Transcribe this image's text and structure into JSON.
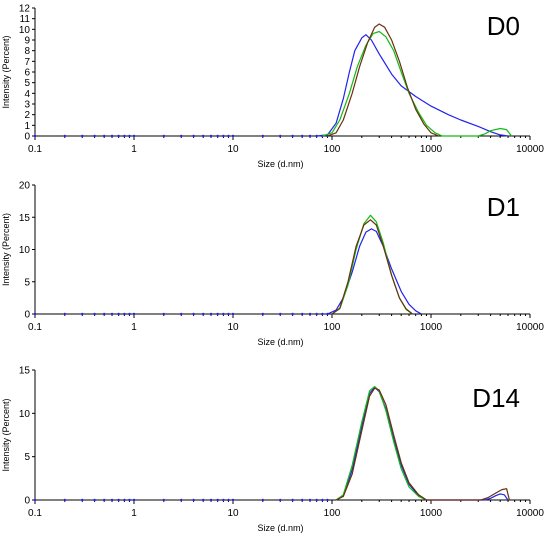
{
  "colors": {
    "run1": "#2222ee",
    "run2": "#11bb11",
    "run3": "#6b3010",
    "axis": "#000000"
  },
  "chart_data": [
    {
      "type": "line",
      "panel_label": "D0",
      "xlabel": "Size (d.nm)",
      "ylabel": "Intensity (Percent)",
      "xscale": "log",
      "xlim": [
        0.1,
        10000
      ],
      "ylim": [
        0,
        12
      ],
      "xticks": [
        "0.1",
        "1",
        "10",
        "100",
        "1000",
        "10000"
      ],
      "yticks": [
        "0",
        "1",
        "2",
        "3",
        "4",
        "5",
        "6",
        "7",
        "8",
        "9",
        "10",
        "11",
        "12"
      ],
      "grid": false,
      "series": [
        {
          "color_key": "run1",
          "points": [
            [
              70,
              0
            ],
            [
              90,
              0.1
            ],
            [
              110,
              1.2
            ],
            [
              130,
              3.5
            ],
            [
              150,
              6.0
            ],
            [
              170,
              8.0
            ],
            [
              200,
              9.2
            ],
            [
              220,
              9.5
            ],
            [
              250,
              9.0
            ],
            [
              300,
              7.7
            ],
            [
              400,
              5.8
            ],
            [
              500,
              4.7
            ],
            [
              700,
              3.7
            ],
            [
              1000,
              2.8
            ],
            [
              1500,
              2.0
            ],
            [
              2000,
              1.5
            ],
            [
              3000,
              0.9
            ],
            [
              4000,
              0.4
            ],
            [
              5000,
              0.1
            ],
            [
              6000,
              0
            ]
          ]
        },
        {
          "color_key": "run2",
          "points": [
            [
              80,
              0
            ],
            [
              100,
              0.3
            ],
            [
              120,
              1.5
            ],
            [
              150,
              4.0
            ],
            [
              180,
              6.5
            ],
            [
              220,
              8.5
            ],
            [
              260,
              9.6
            ],
            [
              300,
              9.8
            ],
            [
              350,
              9.3
            ],
            [
              420,
              8.0
            ],
            [
              500,
              6.0
            ],
            [
              600,
              4.0
            ],
            [
              750,
              2.2
            ],
            [
              900,
              1.0
            ],
            [
              1100,
              0.3
            ],
            [
              1300,
              0
            ],
            [
              3000,
              0
            ],
            [
              3500,
              0.2
            ],
            [
              4000,
              0.5
            ],
            [
              5000,
              0.7
            ],
            [
              5800,
              0.6
            ],
            [
              6500,
              0
            ]
          ]
        },
        {
          "color_key": "run3",
          "points": [
            [
              90,
              0
            ],
            [
              110,
              0.3
            ],
            [
              130,
              1.5
            ],
            [
              160,
              4.0
            ],
            [
              190,
              6.5
            ],
            [
              230,
              8.8
            ],
            [
              270,
              10.2
            ],
            [
              300,
              10.5
            ],
            [
              340,
              10.2
            ],
            [
              400,
              9.0
            ],
            [
              480,
              7.0
            ],
            [
              580,
              4.5
            ],
            [
              700,
              2.5
            ],
            [
              850,
              1.1
            ],
            [
              1000,
              0.3
            ],
            [
              1200,
              0
            ]
          ]
        }
      ]
    },
    {
      "type": "line",
      "panel_label": "D1",
      "xlabel": "Size (d.nm)",
      "ylabel": "Intensity (Percent)",
      "xscale": "log",
      "xlim": [
        0.1,
        10000
      ],
      "ylim": [
        0,
        20
      ],
      "xticks": [
        "0.1",
        "1",
        "10",
        "100",
        "1000",
        "10000"
      ],
      "yticks": [
        "0",
        "5",
        "10",
        "15",
        "20"
      ],
      "grid": false,
      "series": [
        {
          "color_key": "run1",
          "points": [
            [
              90,
              0
            ],
            [
              110,
              0.6
            ],
            [
              130,
              2.5
            ],
            [
              160,
              6.5
            ],
            [
              190,
              10.5
            ],
            [
              220,
              12.7
            ],
            [
              250,
              13.2
            ],
            [
              280,
              12.8
            ],
            [
              330,
              10.5
            ],
            [
              400,
              7.0
            ],
            [
              500,
              3.5
            ],
            [
              600,
              1.5
            ],
            [
              700,
              0.5
            ],
            [
              800,
              0
            ]
          ]
        },
        {
          "color_key": "run2",
          "points": [
            [
              100,
              0
            ],
            [
              120,
              0.8
            ],
            [
              145,
              4.5
            ],
            [
              175,
              10.0
            ],
            [
              210,
              14.0
            ],
            [
              245,
              15.3
            ],
            [
              280,
              14.3
            ],
            [
              330,
              11.0
            ],
            [
              400,
              6.0
            ],
            [
              480,
              2.5
            ],
            [
              560,
              0.7
            ],
            [
              650,
              0
            ]
          ]
        },
        {
          "color_key": "run3",
          "points": [
            [
              100,
              0
            ],
            [
              120,
              0.9
            ],
            [
              145,
              5.0
            ],
            [
              175,
              10.5
            ],
            [
              210,
              13.8
            ],
            [
              245,
              14.6
            ],
            [
              280,
              13.8
            ],
            [
              330,
              10.5
            ],
            [
              400,
              6.0
            ],
            [
              480,
              2.5
            ],
            [
              560,
              0.8
            ],
            [
              650,
              0
            ]
          ]
        }
      ]
    },
    {
      "type": "line",
      "panel_label": "D14",
      "xlabel": "Size (d.nm)",
      "ylabel": "Intensity (Percent)",
      "xscale": "log",
      "xlim": [
        0.1,
        10000
      ],
      "ylim": [
        0,
        15
      ],
      "xticks": [
        "0.1",
        "1",
        "10",
        "100",
        "1000",
        "10000"
      ],
      "yticks": [
        "0",
        "5",
        "10",
        "15"
      ],
      "grid": false,
      "series": [
        {
          "color_key": "run1",
          "points": [
            [
              110,
              0
            ],
            [
              130,
              0.5
            ],
            [
              160,
              3.5
            ],
            [
              200,
              8.5
            ],
            [
              240,
              12.3
            ],
            [
              270,
              13.0
            ],
            [
              300,
              12.5
            ],
            [
              350,
              10.5
            ],
            [
              420,
              7.0
            ],
            [
              500,
              4.0
            ],
            [
              600,
              1.8
            ],
            [
              750,
              0.5
            ],
            [
              900,
              0
            ],
            [
              3500,
              0
            ],
            [
              4000,
              0.2
            ],
            [
              4500,
              0.5
            ],
            [
              5000,
              0.7
            ],
            [
              5500,
              0.6
            ],
            [
              6000,
              0
            ]
          ]
        },
        {
          "color_key": "run2",
          "points": [
            [
              110,
              0
            ],
            [
              130,
              0.6
            ],
            [
              160,
              4.0
            ],
            [
              200,
              9.0
            ],
            [
              240,
              12.6
            ],
            [
              270,
              13.1
            ],
            [
              300,
              12.6
            ],
            [
              350,
              10.3
            ],
            [
              420,
              6.7
            ],
            [
              500,
              3.6
            ],
            [
              600,
              1.5
            ],
            [
              750,
              0.4
            ],
            [
              900,
              0
            ]
          ]
        },
        {
          "color_key": "run3",
          "points": [
            [
              110,
              0
            ],
            [
              130,
              0.4
            ],
            [
              160,
              3.0
            ],
            [
              200,
              8.0
            ],
            [
              240,
              12.0
            ],
            [
              270,
              12.9
            ],
            [
              300,
              12.7
            ],
            [
              350,
              11.0
            ],
            [
              420,
              7.5
            ],
            [
              500,
              4.3
            ],
            [
              600,
              2.0
            ],
            [
              750,
              0.6
            ],
            [
              900,
              0
            ],
            [
              3200,
              0
            ],
            [
              3800,
              0.3
            ],
            [
              4500,
              0.8
            ],
            [
              5200,
              1.2
            ],
            [
              5800,
              1.3
            ],
            [
              6200,
              0
            ]
          ]
        }
      ]
    }
  ]
}
